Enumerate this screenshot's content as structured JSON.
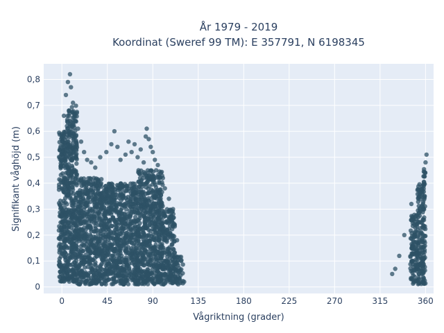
{
  "chart_data": {
    "type": "scatter",
    "title": "År 1979 - 2019",
    "subtitle": "Koordinat (Sweref 99 TM): E 357791, N 6198345",
    "xlabel": "Vågriktning (grader)",
    "ylabel": "Signifikant våghöjd (m)",
    "xlim": [
      -18,
      368
    ],
    "ylim": [
      -0.025,
      0.86
    ],
    "xticks": [
      0,
      45,
      90,
      135,
      180,
      225,
      270,
      315,
      360
    ],
    "xtick_labels": [
      "0",
      "45",
      "90",
      "135",
      "180",
      "225",
      "270",
      "315",
      "360"
    ],
    "yticks": [
      0,
      0.1,
      0.2,
      0.3,
      0.4,
      0.5,
      0.6,
      0.7,
      0.8
    ],
    "ytick_labels": [
      "0",
      "0,1",
      "0,2",
      "0,3",
      "0,4",
      "0,5",
      "0,6",
      "0,7",
      "0,8"
    ],
    "grid": true,
    "marker_color": "#2e5266",
    "plot_bg": "#e5ecf6",
    "grid_color": "#ffffff",
    "point_clusters": [
      {
        "x_range": [
          -3,
          5
        ],
        "y_range": [
          0.02,
          0.6
        ]
      },
      {
        "x_range": [
          5,
          15
        ],
        "y_range": [
          0.02,
          0.7
        ]
      },
      {
        "x_range": [
          15,
          40
        ],
        "y_range": [
          0.01,
          0.42
        ]
      },
      {
        "x_range": [
          40,
          75
        ],
        "y_range": [
          0.01,
          0.4
        ]
      },
      {
        "x_range": [
          75,
          100
        ],
        "y_range": [
          0.01,
          0.45
        ]
      },
      {
        "x_range": [
          100,
          112
        ],
        "y_range": [
          0.01,
          0.3
        ]
      },
      {
        "x_range": [
          112,
          120
        ],
        "y_range": [
          0.01,
          0.12
        ]
      },
      {
        "x_range": [
          345,
          352
        ],
        "y_range": [
          0.01,
          0.28
        ]
      },
      {
        "x_range": [
          352,
          358
        ],
        "y_range": [
          0.01,
          0.4
        ]
      },
      {
        "x_range": [
          358,
          360
        ],
        "y_range": [
          0.01,
          0.46
        ]
      }
    ],
    "outliers": [
      {
        "x": 8,
        "y": 0.82
      },
      {
        "x": 6,
        "y": 0.79
      },
      {
        "x": 9,
        "y": 0.77
      },
      {
        "x": 4,
        "y": 0.74
      },
      {
        "x": 11,
        "y": 0.71
      },
      {
        "x": 7,
        "y": 0.68
      },
      {
        "x": 2,
        "y": 0.66
      },
      {
        "x": 13,
        "y": 0.64
      },
      {
        "x": 5,
        "y": 0.62
      },
      {
        "x": 16,
        "y": 0.61
      },
      {
        "x": 1,
        "y": 0.58
      },
      {
        "x": 19,
        "y": 0.56
      },
      {
        "x": 3,
        "y": 0.53
      },
      {
        "x": 22,
        "y": 0.52
      },
      {
        "x": 14,
        "y": 0.5
      },
      {
        "x": 25,
        "y": 0.49
      },
      {
        "x": 29,
        "y": 0.48
      },
      {
        "x": 33,
        "y": 0.46
      },
      {
        "x": 38,
        "y": 0.5
      },
      {
        "x": 44,
        "y": 0.52
      },
      {
        "x": 49,
        "y": 0.55
      },
      {
        "x": 52,
        "y": 0.6
      },
      {
        "x": 55,
        "y": 0.54
      },
      {
        "x": 58,
        "y": 0.49
      },
      {
        "x": 63,
        "y": 0.51
      },
      {
        "x": 66,
        "y": 0.56
      },
      {
        "x": 69,
        "y": 0.52
      },
      {
        "x": 72,
        "y": 0.55
      },
      {
        "x": 75,
        "y": 0.5
      },
      {
        "x": 78,
        "y": 0.53
      },
      {
        "x": 81,
        "y": 0.48
      },
      {
        "x": 83,
        "y": 0.58
      },
      {
        "x": 84,
        "y": 0.61
      },
      {
        "x": 86,
        "y": 0.57
      },
      {
        "x": 88,
        "y": 0.54
      },
      {
        "x": 90,
        "y": 0.52
      },
      {
        "x": 92,
        "y": 0.49
      },
      {
        "x": 95,
        "y": 0.47
      },
      {
        "x": 98,
        "y": 0.44
      },
      {
        "x": 102,
        "y": 0.38
      },
      {
        "x": 106,
        "y": 0.34
      },
      {
        "x": 110,
        "y": 0.3
      },
      {
        "x": 114,
        "y": 0.18
      },
      {
        "x": 118,
        "y": 0.1
      },
      {
        "x": 121,
        "y": 0.02
      },
      {
        "x": 361,
        "y": 0.51
      },
      {
        "x": 360,
        "y": 0.48
      },
      {
        "x": 355,
        "y": 0.36
      },
      {
        "x": 346,
        "y": 0.32
      },
      {
        "x": 339,
        "y": 0.2
      },
      {
        "x": 334,
        "y": 0.12
      },
      {
        "x": 330,
        "y": 0.07
      },
      {
        "x": 327,
        "y": 0.05
      }
    ]
  }
}
